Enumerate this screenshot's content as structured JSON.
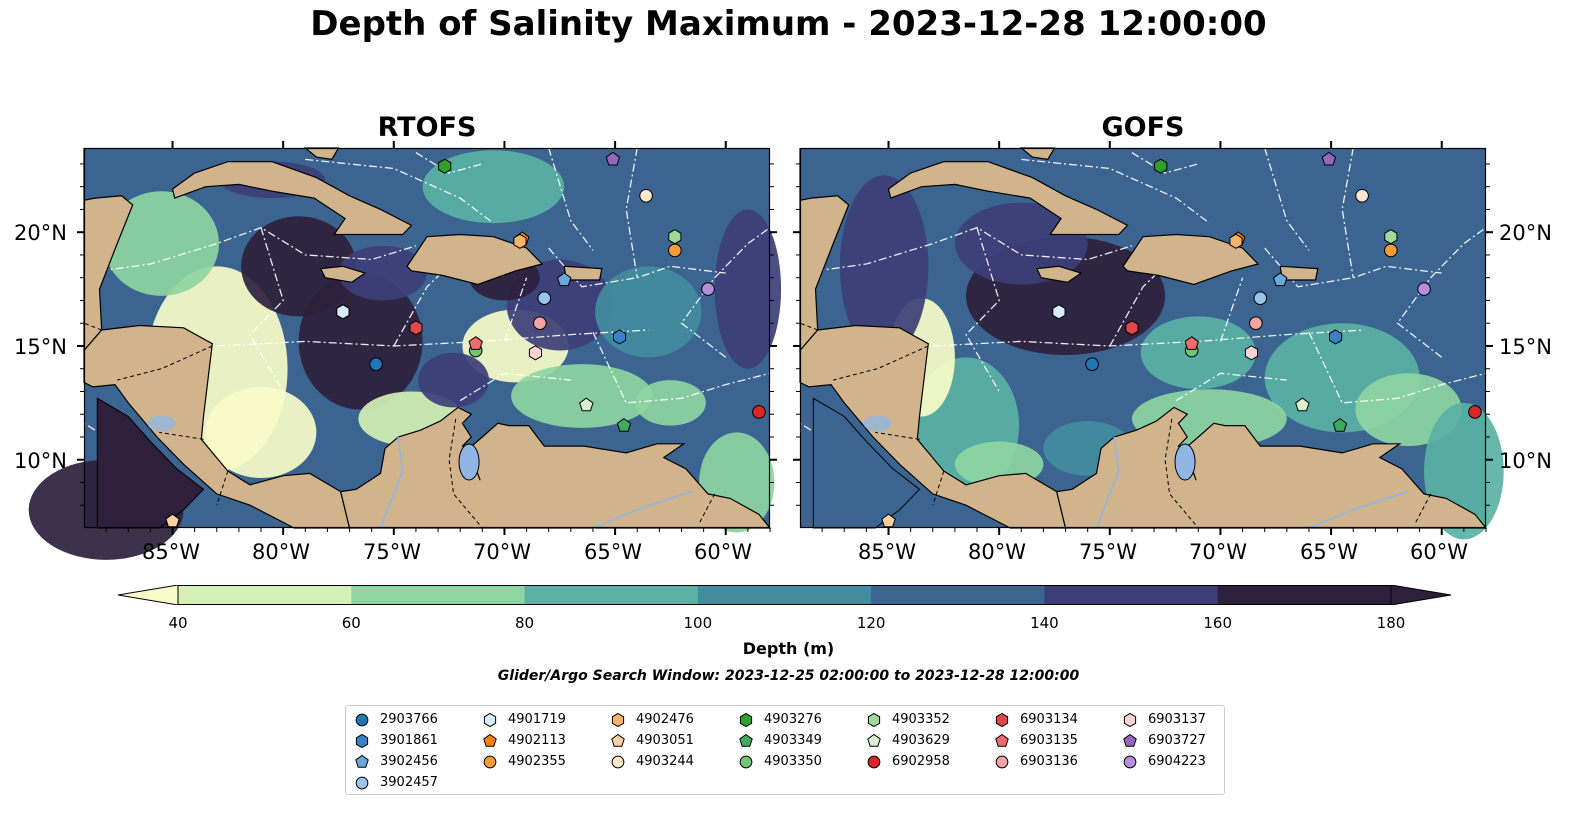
{
  "title": "Depth of Salinity Maximum - 2023-12-28 12:00:00",
  "panels": [
    {
      "title": "RTOFS"
    },
    {
      "title": "GOFS"
    }
  ],
  "lat_labels": [
    "20°N",
    "15°N",
    "10°N"
  ],
  "lon_labels": [
    "85°W",
    "80°W",
    "75°W",
    "70°W",
    "65°W",
    "60°W"
  ],
  "colorbar": {
    "label": "Depth (m)",
    "ticks": [
      "40",
      "60",
      "80",
      "100",
      "120",
      "140",
      "160",
      "180"
    ],
    "colors": [
      "#f8fcc8",
      "#d4f0b4",
      "#8ed5a2",
      "#5ab1a4",
      "#438c9e",
      "#3b6590",
      "#3d3e78",
      "#2e1f3d"
    ]
  },
  "search_window": "Glider/Argo Search Window: 2023-12-25 02:00:00 to 2023-12-28 12:00:00",
  "legend": [
    {
      "id": "2903766",
      "marker": "circle",
      "color": "#1f77b4"
    },
    {
      "id": "3901861",
      "marker": "hexagon",
      "color": "#3b7fc4"
    },
    {
      "id": "3902456",
      "marker": "pentagon",
      "color": "#6aa8dc"
    },
    {
      "id": "3902457",
      "marker": "circle",
      "color": "#9ac4ea"
    },
    {
      "id": "4901719",
      "marker": "hexagon",
      "color": "#d6ecfa"
    },
    {
      "id": "4902113",
      "marker": "pentagon",
      "color": "#ff7f0e"
    },
    {
      "id": "4902355",
      "marker": "circle",
      "color": "#fd9a3a"
    },
    {
      "id": "4902476",
      "marker": "hexagon",
      "color": "#fdb36b"
    },
    {
      "id": "4903051",
      "marker": "pentagon",
      "color": "#fdd0a2"
    },
    {
      "id": "4903244",
      "marker": "circle",
      "color": "#fee6ce"
    },
    {
      "id": "4903276",
      "marker": "hexagon",
      "color": "#2ca02c"
    },
    {
      "id": "4903349",
      "marker": "pentagon",
      "color": "#41ab5d"
    },
    {
      "id": "4903350",
      "marker": "circle",
      "color": "#74c476"
    },
    {
      "id": "4903352",
      "marker": "hexagon",
      "color": "#a1d99b"
    },
    {
      "id": "4903629",
      "marker": "pentagon",
      "color": "#d9f0d3"
    },
    {
      "id": "6902958",
      "marker": "circle",
      "color": "#d62728"
    },
    {
      "id": "6903134",
      "marker": "hexagon",
      "color": "#e0474c"
    },
    {
      "id": "6903135",
      "marker": "pentagon",
      "color": "#ef6a6a"
    },
    {
      "id": "6903136",
      "marker": "circle",
      "color": "#f4a3a3"
    },
    {
      "id": "6903137",
      "marker": "hexagon",
      "color": "#fbd3d3"
    },
    {
      "id": "6903727",
      "marker": "pentagon",
      "color": "#9467bd"
    },
    {
      "id": "6904223",
      "marker": "circle",
      "color": "#b48ddb"
    }
  ],
  "map_extent": {
    "lon": [
      -89,
      -58
    ],
    "lat": [
      7,
      23.7
    ]
  },
  "floats": [
    {
      "id": "2903766",
      "lon": -75.8,
      "lat": 14.2
    },
    {
      "id": "3901861",
      "lon": -64.8,
      "lat": 15.4
    },
    {
      "id": "3902456",
      "lon": -67.3,
      "lat": 17.9
    },
    {
      "id": "3902457",
      "lon": -68.2,
      "lat": 17.1
    },
    {
      "id": "4901719",
      "lon": -77.3,
      "lat": 16.5
    },
    {
      "id": "4902113",
      "lon": -69.2,
      "lat": 19.7
    },
    {
      "id": "4902355",
      "lon": -62.3,
      "lat": 19.2
    },
    {
      "id": "4902476",
      "lon": -69.3,
      "lat": 19.6
    },
    {
      "id": "4903051",
      "lon": -85.0,
      "lat": 7.3
    },
    {
      "id": "4903244",
      "lon": -63.6,
      "lat": 21.6
    },
    {
      "id": "4903276",
      "lon": -72.7,
      "lat": 22.9
    },
    {
      "id": "4903349",
      "lon": -64.6,
      "lat": 11.5
    },
    {
      "id": "4903350",
      "lon": -71.3,
      "lat": 14.8
    },
    {
      "id": "4903352",
      "lon": -62.3,
      "lat": 19.8
    },
    {
      "id": "4903629",
      "lon": -66.3,
      "lat": 12.4
    },
    {
      "id": "6902958",
      "lon": -58.5,
      "lat": 12.1
    },
    {
      "id": "6903134",
      "lon": -74.0,
      "lat": 15.8
    },
    {
      "id": "6903135",
      "lon": -71.3,
      "lat": 15.1
    },
    {
      "id": "6903136",
      "lon": -68.4,
      "lat": 16.0
    },
    {
      "id": "6903137",
      "lon": -68.6,
      "lat": 14.7
    },
    {
      "id": "6903727",
      "lon": -65.1,
      "lat": 23.2
    },
    {
      "id": "6904223",
      "lon": -60.8,
      "lat": 17.5
    }
  ]
}
